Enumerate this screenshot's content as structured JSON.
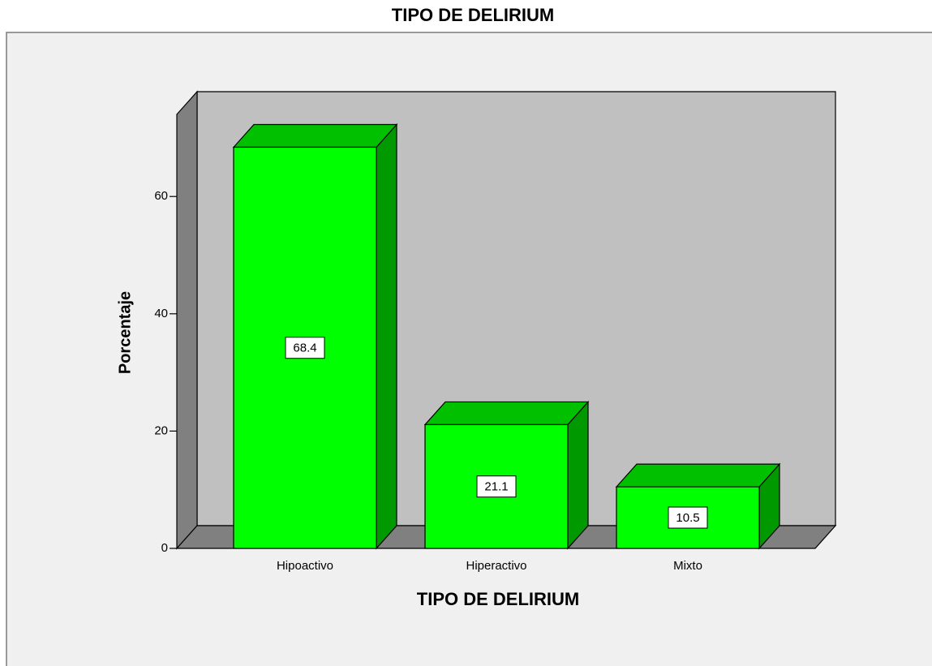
{
  "chart_data": {
    "type": "bar3d",
    "title": "TIPO DE DELIRIUM",
    "x_label": "TIPO DE DELIRIUM",
    "y_label": "Porcentaje",
    "categories": [
      "Hipoactivo",
      "Hiperactivo",
      "Mixto"
    ],
    "values": [
      68.4,
      21.1,
      10.5
    ],
    "color": "#00ff00",
    "ylim": [
      0,
      74
    ],
    "yticks": [
      0,
      20,
      40,
      60
    ]
  }
}
